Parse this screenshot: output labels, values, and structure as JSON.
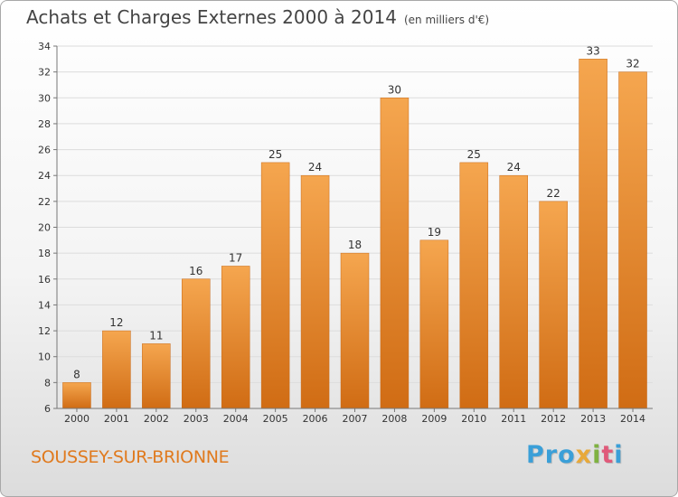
{
  "header": {
    "title": "Achats et Charges Externes 2000 à 2014",
    "unit": "(en milliers d'€)"
  },
  "footer": {
    "place": "SOUSSEY-SUR-BRIONNE",
    "logo": [
      "Pro",
      "x",
      "i",
      "t",
      "i"
    ]
  },
  "colors": {
    "bar_top": "#f5a64f",
    "bar_bottom": "#d06c14",
    "place": "#e07a1e"
  },
  "chart_data": {
    "type": "bar",
    "categories": [
      "2000",
      "2001",
      "2002",
      "2003",
      "2004",
      "2005",
      "2006",
      "2007",
      "2008",
      "2009",
      "2010",
      "2011",
      "2012",
      "2013",
      "2014"
    ],
    "values": [
      8,
      12,
      11,
      16,
      17,
      25,
      24,
      18,
      30,
      19,
      25,
      24,
      22,
      33,
      32
    ],
    "title": "Achats et Charges Externes 2000 à 2014",
    "subtitle": "(en milliers d'€)",
    "xlabel": "",
    "ylabel": "",
    "ylim": [
      6,
      34
    ],
    "yticks": [
      6,
      8,
      10,
      12,
      14,
      16,
      18,
      20,
      22,
      24,
      26,
      28,
      30,
      32,
      34
    ],
    "grid": true
  }
}
